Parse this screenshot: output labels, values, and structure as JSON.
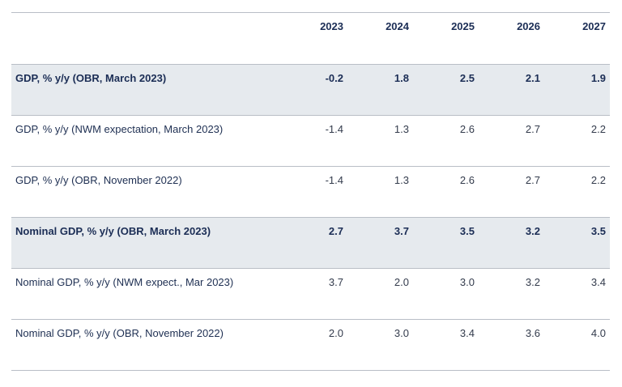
{
  "table": {
    "columns": [
      "2023",
      "2024",
      "2025",
      "2026",
      "2027"
    ],
    "rows": [
      {
        "label": "GDP, % y/y  (OBR, March 2023)",
        "values": [
          "-0.2",
          "1.8",
          "2.5",
          "2.1",
          "1.9"
        ],
        "highlight": true
      },
      {
        "label": "GDP, % y/y  (NWM expectation, March 2023)",
        "values": [
          "-1.4",
          "1.3",
          "2.6",
          "2.7",
          "2.2"
        ],
        "highlight": false
      },
      {
        "label": "GDP, % y/y  (OBR, November 2022)",
        "values": [
          "-1.4",
          "1.3",
          "2.6",
          "2.7",
          "2.2"
        ],
        "highlight": false
      },
      {
        "label": "Nominal GDP, % y/y  (OBR, March 2023)",
        "values": [
          "2.7",
          "3.7",
          "3.5",
          "3.2",
          "3.5"
        ],
        "highlight": true
      },
      {
        "label": "Nominal GDP, % y/y  (NWM expect., Mar 2023)",
        "values": [
          "3.7",
          "2.0",
          "3.0",
          "3.2",
          "3.4"
        ],
        "highlight": false
      },
      {
        "label": "Nominal GDP, % y/y  (OBR, November 2022)",
        "values": [
          "2.0",
          "3.0",
          "3.4",
          "3.6",
          "4.0"
        ],
        "highlight": false
      }
    ]
  }
}
